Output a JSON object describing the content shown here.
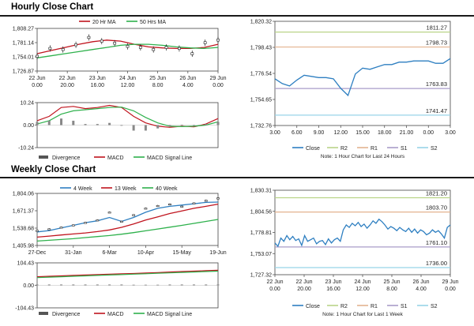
{
  "sections": {
    "hourly_title": "Hourly Close Chart",
    "weekly_title": "Weekly Close Chart"
  },
  "colors": {
    "ma_short": "#c0141e",
    "ma_long": "#2eb14c",
    "close": "#2e7fc1",
    "r2": "#b9d488",
    "r1": "#e3b28f",
    "s1": "#a89cc8",
    "s2": "#98d4e8",
    "candle": "#222222",
    "divergence": "#888888"
  },
  "chart_data": [
    {
      "id": "hourly-price",
      "type": "line",
      "legend": [
        "20 Hr MA",
        "50 Hrs MA"
      ],
      "y_ticks": [
        "1,808.27",
        "1,781.14",
        "1,754.01",
        "1,726.87"
      ],
      "ylim": [
        1726.87,
        1808.27
      ],
      "x_ticks": [
        [
          "22 Jun",
          "0.00"
        ],
        [
          "22 Jun",
          "20.00"
        ],
        [
          "23 Jun",
          "16.00"
        ],
        [
          "24 Jun",
          "12.00"
        ],
        [
          "25 Jun",
          "8.00"
        ],
        [
          "26 Jun",
          "4.00"
        ],
        [
          "29 Jun",
          "0.00"
        ]
      ],
      "series": [
        {
          "name": "20 Hr MA",
          "values": [
            1760,
            1766,
            1772,
            1778,
            1783,
            1786,
            1784,
            1778,
            1773,
            1771,
            1770,
            1770,
            1772,
            1778
          ]
        },
        {
          "name": "50 Hrs MA",
          "values": [
            1752,
            1756,
            1760,
            1764,
            1768,
            1772,
            1776,
            1778,
            1778,
            1776,
            1773,
            1771,
            1770,
            1772
          ]
        },
        {
          "name": "Close",
          "values": [
            1755,
            1770,
            1768,
            1777,
            1791,
            1784,
            1780,
            1774,
            1772,
            1768,
            1772,
            1770,
            1760,
            1781,
            1786
          ]
        }
      ]
    },
    {
      "id": "hourly-macd",
      "type": "line",
      "y_ticks": [
        "10.24",
        "0.00",
        "-10.24"
      ],
      "ylim": [
        -10.24,
        10.24
      ],
      "legend": [
        "Divergence",
        "MACD",
        "MACD Signal Line"
      ],
      "series": [
        {
          "name": "MACD",
          "values": [
            2,
            4,
            8,
            8.5,
            7.5,
            8,
            9,
            8,
            4,
            1,
            -0.5,
            -1,
            -0.5,
            -0.8,
            0.5,
            3
          ]
        },
        {
          "name": "MACD Signal Line",
          "values": [
            0.5,
            2,
            5,
            6.5,
            7,
            7.5,
            8,
            8.2,
            6.5,
            3.5,
            1,
            -0.5,
            -0.7,
            -0.5,
            0,
            1.5
          ]
        },
        {
          "name": "Divergence",
          "values": [
            1.5,
            2,
            3,
            2,
            0.5,
            0.5,
            1,
            -0.2,
            -2.5,
            -2.5,
            -1.5,
            -0.5,
            0.2,
            -0.3,
            0.5,
            1.5
          ]
        }
      ]
    },
    {
      "id": "hourly-close",
      "type": "line",
      "y_ticks": [
        "1,820.32",
        "1,798.43",
        "1,776.54",
        "1,754.65",
        "1,732.76"
      ],
      "ylim": [
        1732.76,
        1820.32
      ],
      "x_ticks": [
        "3.00",
        "6.00",
        "9.00",
        "12.00",
        "15.00",
        "18.00",
        "21.00",
        "0.00",
        "3.00"
      ],
      "levels": [
        {
          "name": "R2",
          "value": 1811.27,
          "label": "1811.27"
        },
        {
          "name": "R1",
          "value": 1798.73,
          "label": "1798.73"
        },
        {
          "name": "S1",
          "value": 1763.83,
          "label": "1763.83"
        },
        {
          "name": "S2",
          "value": 1741.47,
          "label": "1741.47"
        }
      ],
      "legend": [
        "Close",
        "R2",
        "R1",
        "S1",
        "S2"
      ],
      "note": "Note: 1 Hour Chart for Last 24 Hours",
      "series": [
        {
          "name": "Close",
          "x": [
            0,
            1,
            2,
            3,
            4,
            5,
            6,
            7,
            8,
            9,
            10,
            11,
            12,
            13,
            14,
            15,
            16,
            17,
            18,
            19,
            20,
            21,
            22,
            23,
            24
          ],
          "values": [
            1772,
            1768,
            1766,
            1771,
            1775,
            1774,
            1773,
            1773,
            1772,
            1764,
            1758,
            1776,
            1781,
            1780,
            1782,
            1784,
            1784,
            1786,
            1786,
            1787,
            1787,
            1787,
            1785,
            1785,
            1789
          ]
        }
      ]
    },
    {
      "id": "weekly-price",
      "type": "line",
      "legend": [
        "4 Week",
        "13 Week",
        "40 Week"
      ],
      "y_ticks": [
        "1,804.06",
        "1,671.37",
        "1,538.68",
        "1,405.98"
      ],
      "ylim": [
        1405.98,
        1804.06
      ],
      "x_ticks": [
        "27-Dec",
        "31-Jan",
        "6-Mar",
        "10-Apr",
        "15-May",
        "19-Jun"
      ],
      "series": [
        {
          "name": "4 Week",
          "values": [
            1510,
            1520,
            1540,
            1560,
            1580,
            1595,
            1620,
            1590,
            1620,
            1660,
            1690,
            1705,
            1715,
            1725,
            1735,
            1738
          ]
        },
        {
          "name": "13 Week",
          "values": [
            1470,
            1478,
            1486,
            1494,
            1502,
            1512,
            1525,
            1545,
            1570,
            1600,
            1625,
            1650,
            1670,
            1690,
            1705,
            1722
          ]
        },
        {
          "name": "40 Week",
          "values": [
            1440,
            1446,
            1452,
            1458,
            1466,
            1474,
            1482,
            1492,
            1504,
            1518,
            1532,
            1546,
            1560,
            1575,
            1590,
            1605
          ]
        },
        {
          "name": "Close",
          "values": [
            1520,
            1532,
            1545,
            1562,
            1581,
            1600,
            1660,
            1590,
            1640,
            1690,
            1710,
            1722,
            1705,
            1730,
            1750,
            1768
          ]
        }
      ]
    },
    {
      "id": "weekly-macd",
      "type": "line",
      "y_ticks": [
        "104.43",
        "0.00",
        "-104.43"
      ],
      "ylim": [
        -104.43,
        104.43
      ],
      "legend": [
        "Divergence",
        "MACD",
        "MACD Signal Line"
      ],
      "series": [
        {
          "name": "MACD",
          "values": [
            40,
            42,
            44,
            46,
            48,
            50,
            52,
            54,
            55,
            57,
            59,
            62,
            64,
            66,
            68,
            70
          ]
        },
        {
          "name": "MACD Signal Line",
          "values": [
            36,
            38,
            40,
            42,
            44,
            46,
            48,
            50,
            52,
            54,
            56,
            58,
            60,
            62,
            64,
            66
          ]
        },
        {
          "name": "Divergence",
          "values": [
            4,
            4,
            4,
            4,
            4,
            4,
            4,
            4,
            3,
            3,
            3,
            4,
            4,
            4,
            4,
            4
          ]
        }
      ]
    },
    {
      "id": "weekly-close",
      "type": "line",
      "y_ticks": [
        "1,830.31",
        "1,804.56",
        "1,778.81",
        "1,753.07",
        "1,727.32"
      ],
      "ylim": [
        1727.32,
        1830.31
      ],
      "x_ticks": [
        [
          "22 Jun",
          "0.00"
        ],
        [
          "22 Jun",
          "20.00"
        ],
        [
          "23 Jun",
          "16.00"
        ],
        [
          "24 Jun",
          "12.00"
        ],
        [
          "25 Jun",
          "8.00"
        ],
        [
          "26 Jun",
          "4.00"
        ],
        [
          "29 Jun",
          "0.00"
        ]
      ],
      "levels": [
        {
          "name": "R2",
          "value": 1821.2,
          "label": "1821.20"
        },
        {
          "name": "R1",
          "value": 1803.7,
          "label": "1803.70"
        },
        {
          "name": "S1",
          "value": 1761.1,
          "label": "1761.10"
        },
        {
          "name": "S2",
          "value": 1736.0,
          "label": "1736.00"
        }
      ],
      "legend": [
        "Close",
        "R2",
        "R1",
        "S1",
        "S2"
      ],
      "note": "Note: 1 Hour Chart for Last 1 Week",
      "series": [
        {
          "name": "Close",
          "x": [
            0,
            1,
            2,
            3,
            4,
            5,
            6,
            7,
            8,
            9,
            10,
            11,
            12,
            13,
            14,
            15,
            16,
            17,
            18,
            19,
            20,
            21,
            22,
            23,
            24,
            25,
            26,
            27,
            28,
            29,
            30,
            31,
            32,
            33,
            34,
            35,
            36,
            37,
            38,
            39,
            40,
            41,
            42,
            43,
            44,
            45,
            46,
            47,
            48,
            49,
            50,
            51,
            52,
            53,
            54,
            55,
            56,
            57,
            58,
            59
          ],
          "values": [
            1766,
            1762,
            1772,
            1768,
            1775,
            1770,
            1774,
            1769,
            1771,
            1763,
            1775,
            1768,
            1770,
            1772,
            1765,
            1768,
            1769,
            1764,
            1771,
            1766,
            1770,
            1772,
            1768,
            1782,
            1788,
            1785,
            1790,
            1787,
            1791,
            1786,
            1789,
            1784,
            1788,
            1793,
            1790,
            1795,
            1792,
            1788,
            1783,
            1786,
            1784,
            1781,
            1785,
            1782,
            1780,
            1784,
            1779,
            1783,
            1778,
            1782,
            1780,
            1776,
            1778,
            1782,
            1779,
            1781,
            1777,
            1772,
            1785,
            1788
          ]
        }
      ]
    }
  ]
}
